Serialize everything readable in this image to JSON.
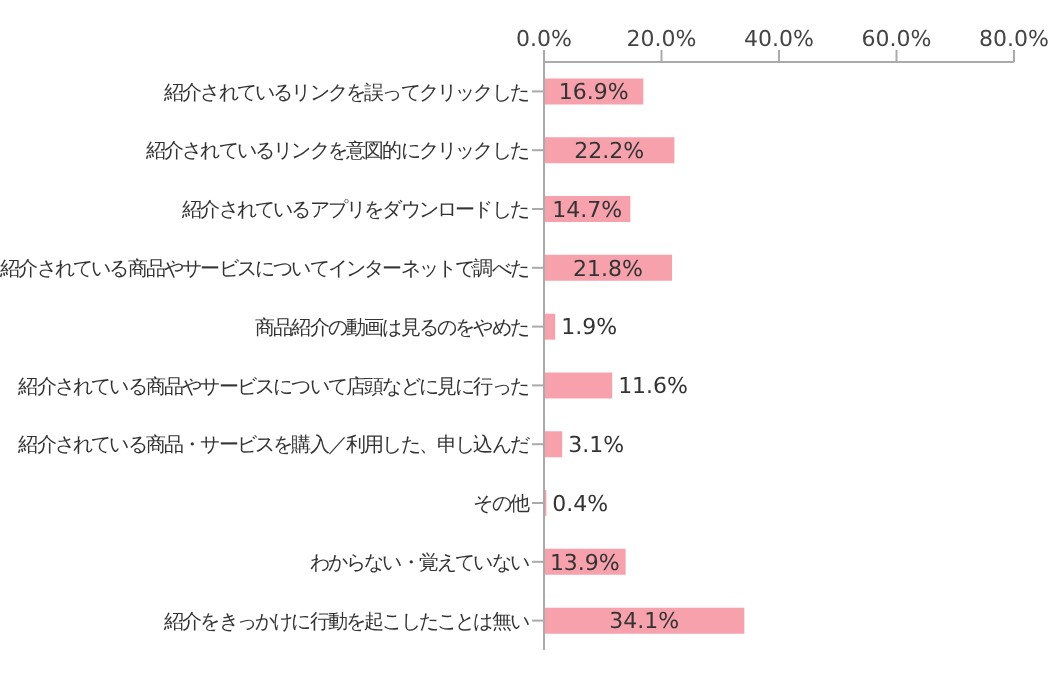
{
  "chart_data": {
    "type": "bar",
    "orientation": "horizontal",
    "categories": [
      "紹介されているリンクを誤ってクリックした",
      "紹介されているリンクを意図的にクリックした",
      "紹介されているアプリをダウンロードした",
      "紹介されている商品やサービスについてインターネットで調べた",
      "商品紹介の動画は見るのをやめた",
      "紹介されている商品やサービスについて店頭などに見に行った",
      "紹介されている商品・サービスを購入／利用した、申し込んだ",
      "その他",
      "わからない・覚えていない",
      "紹介をきっかけに行動を起こしたことは無い"
    ],
    "values": [
      16.9,
      22.2,
      14.7,
      21.8,
      1.9,
      11.6,
      3.1,
      0.4,
      13.9,
      34.1
    ],
    "value_labels": [
      "16.9%",
      "22.2%",
      "14.7%",
      "21.8%",
      "1.9%",
      "11.6%",
      "3.1%",
      "0.4%",
      "13.9%",
      "34.1%"
    ],
    "color": "#f7a1ad",
    "xlim": [
      0,
      80
    ],
    "xticks": [
      {
        "value": 0,
        "label": "0.0%"
      },
      {
        "value": 20,
        "label": "20.0%"
      },
      {
        "value": 40,
        "label": "40.0%"
      },
      {
        "value": 60,
        "label": "60.0%"
      },
      {
        "value": 80,
        "label": "80.0%"
      }
    ],
    "grid": false
  }
}
